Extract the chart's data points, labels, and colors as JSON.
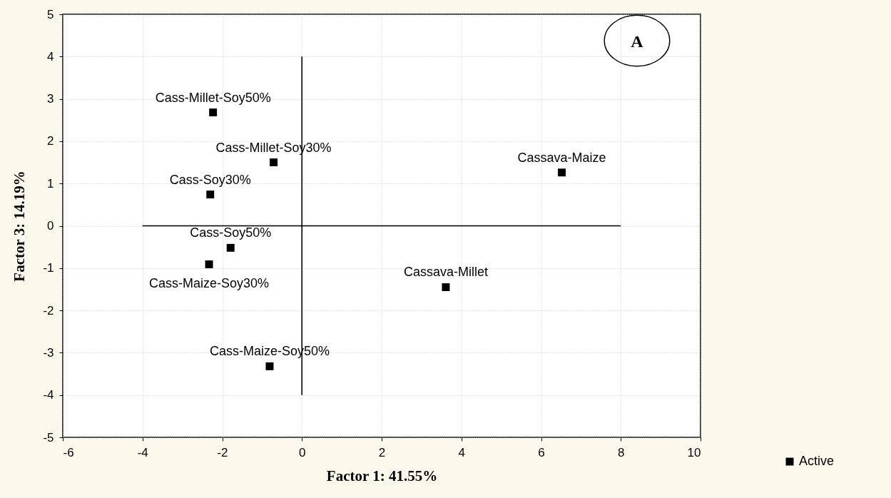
{
  "chart_data": {
    "type": "scatter",
    "xlabel": "Factor 1: 41.55%",
    "ylabel": "Factor 3: 14.19%",
    "xlim": [
      -6,
      10
    ],
    "xticks": [
      -6,
      -4,
      -2,
      0,
      2,
      4,
      6,
      8,
      10
    ],
    "ylim": [
      -5,
      5
    ],
    "yticks": [
      -5,
      -4,
      -3,
      -2,
      -1,
      0,
      1,
      2,
      3,
      4,
      5
    ],
    "grid": true,
    "legend": "bottom right",
    "marker": "square",
    "series": [
      {
        "name": "Active",
        "color": "#000000",
        "x": [
          -2.23,
          -0.71,
          -2.3,
          -1.79,
          -2.33,
          -0.81,
          6.52,
          3.61
        ],
        "values": [
          2.68,
          1.5,
          0.74,
          -0.52,
          -0.91,
          -3.32,
          1.26,
          -1.45
        ]
      },
      {
        "type": "line",
        "color": "#000000",
        "marker": "none",
        "x": [
          -4,
          8
        ],
        "values": [
          0,
          0
        ]
      },
      {
        "type": "line",
        "color": "#000000",
        "marker": "none",
        "x": [
          0,
          0
        ],
        "values": [
          -4,
          4
        ]
      }
    ],
    "annotations": [
      {
        "text": "Cass-Millet-Soy50%",
        "x": -2.23,
        "y": 2.68
      },
      {
        "text": "Cass-Millet-Soy30%",
        "x": -0.71,
        "y": 1.5
      },
      {
        "text": "Cass-Soy30%",
        "x": -2.3,
        "y": 0.74
      },
      {
        "text": "Cass-Soy50%",
        "x": -1.79,
        "y": -0.52
      },
      {
        "text": "Cass-Maize-Soy30%",
        "x": -2.33,
        "y": -0.91
      },
      {
        "text": "Cass-Maize-Soy50%",
        "x": -0.81,
        "y": -3.32
      },
      {
        "text": "Cassava-Maize",
        "x": 6.52,
        "y": 1.26
      },
      {
        "text": "Cassava-Millet",
        "x": 3.61,
        "y": -1.45
      },
      "A"
    ]
  }
}
